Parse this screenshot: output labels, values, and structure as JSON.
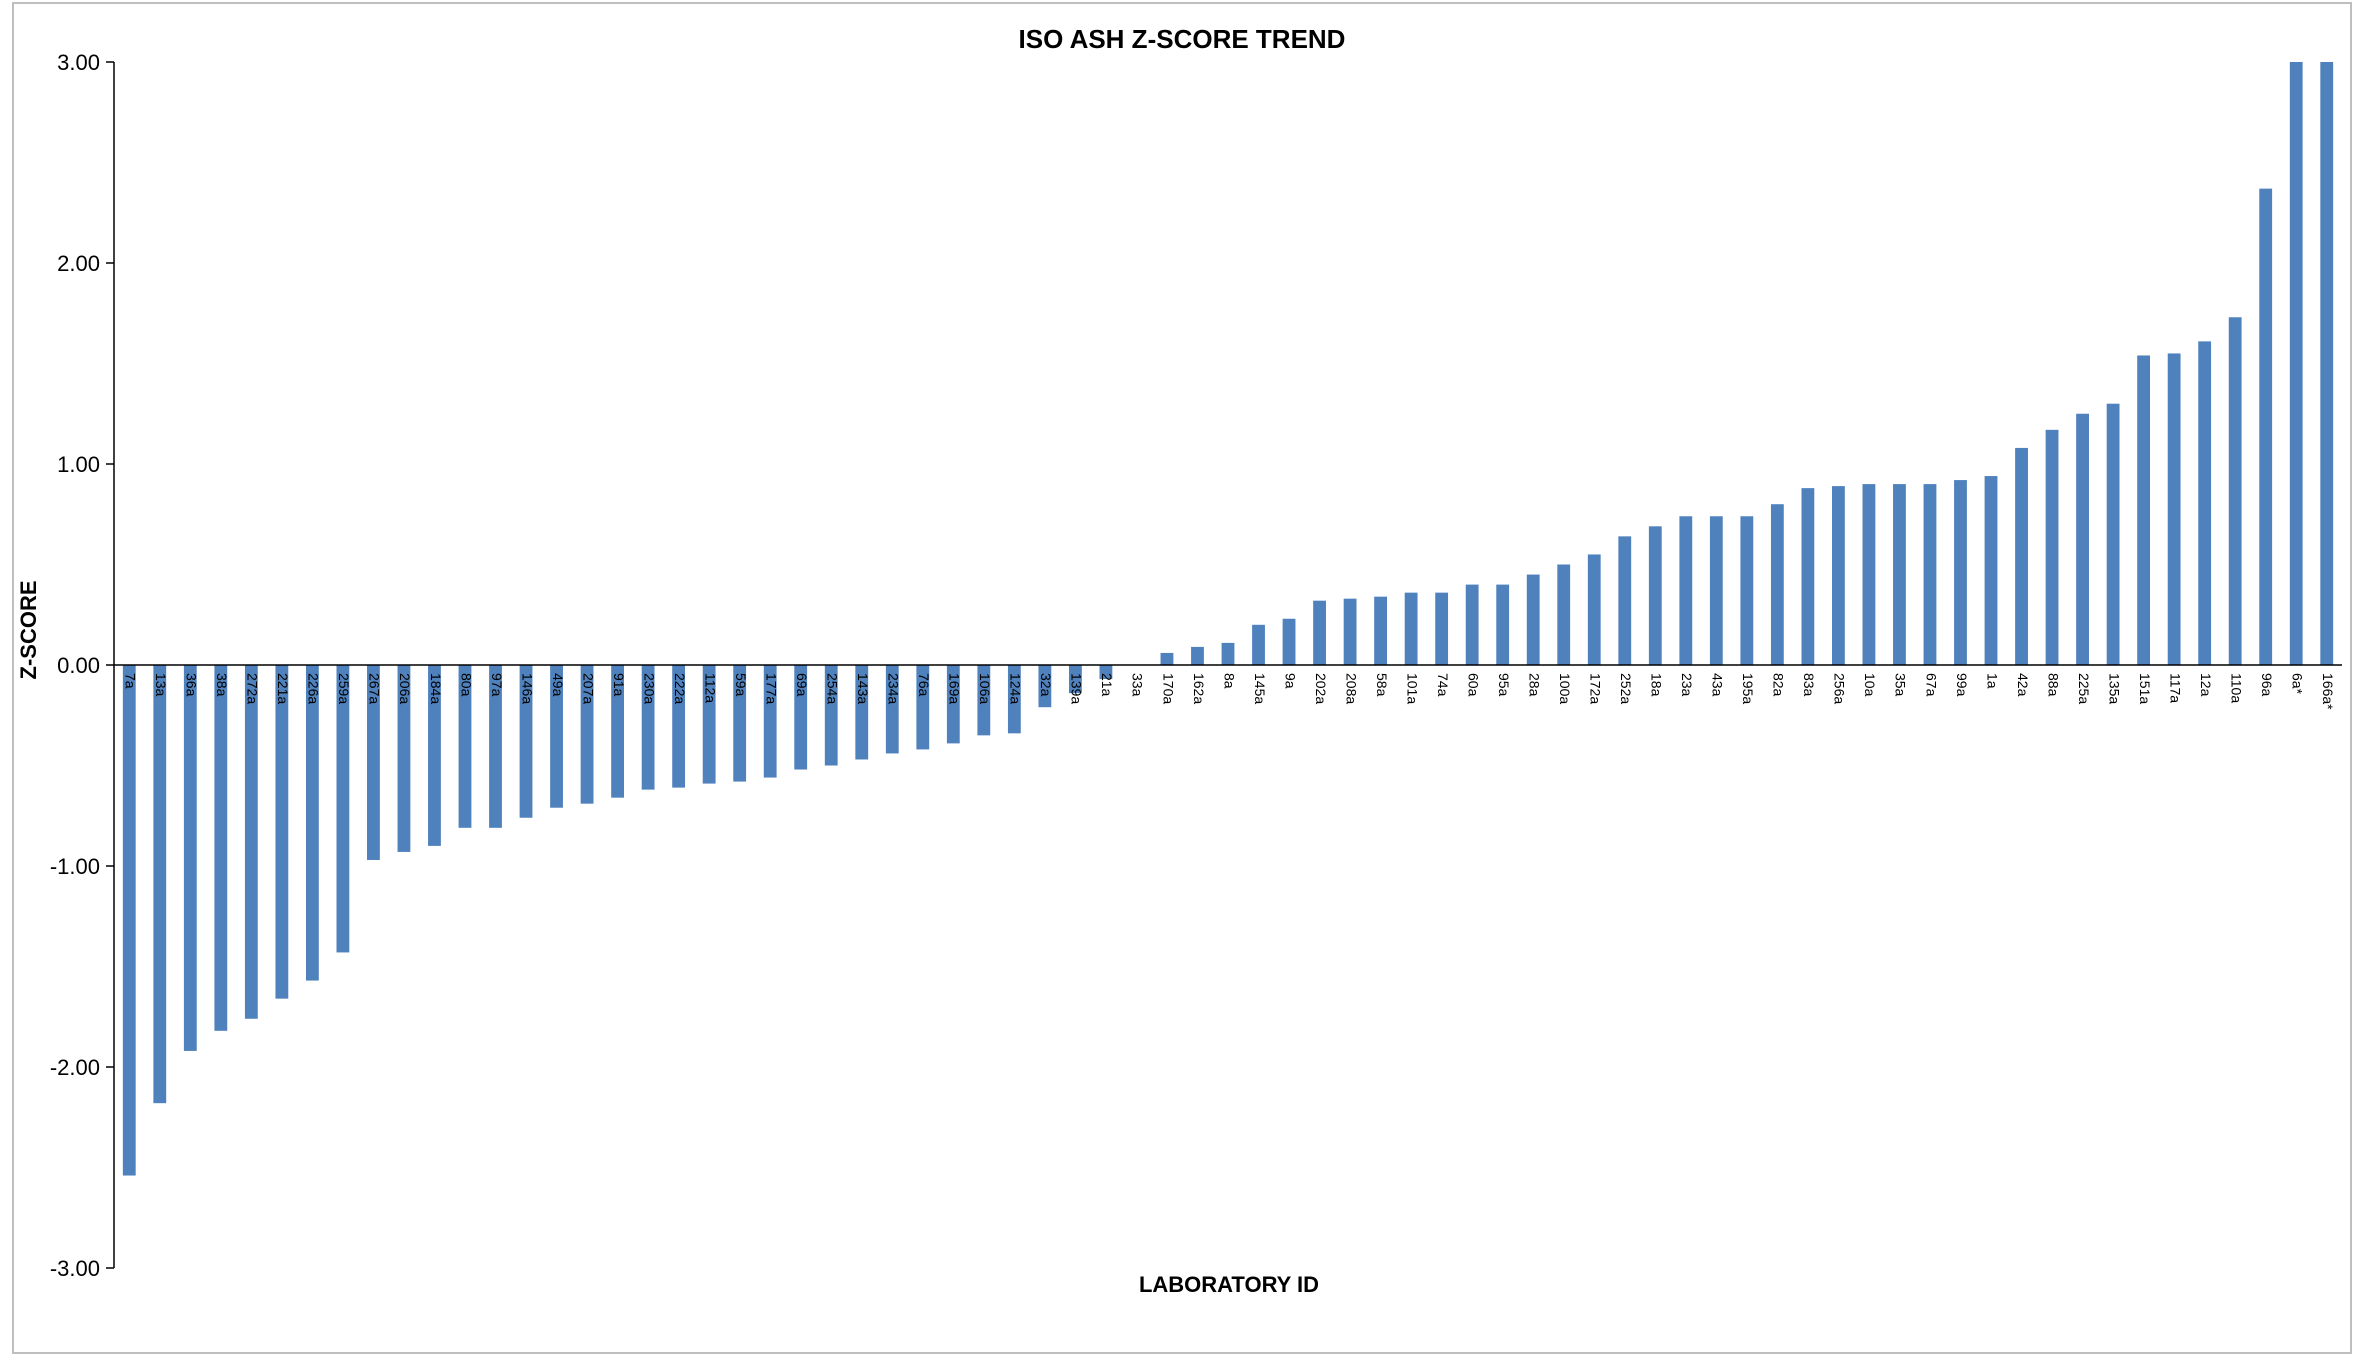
{
  "chart_data": {
    "type": "bar",
    "title": "ISO ASH Z-SCORE TREND",
    "xlabel": "LABORATORY ID",
    "ylabel": "Z-SCORE",
    "ylim": [
      -3,
      3
    ],
    "yticks": [
      "3.00",
      "2.00",
      "1.00",
      "0.00",
      "-1.00",
      "-2.00",
      "-3.00"
    ],
    "grid": false,
    "legend": "none",
    "bar_color": "#4F81BD",
    "categories": [
      "7a",
      "13a",
      "36a",
      "38a",
      "272a",
      "221a",
      "226a",
      "259a",
      "267a",
      "206a",
      "184a",
      "80a",
      "97a",
      "146a",
      "49a",
      "207a",
      "91a",
      "230a",
      "222a",
      "112a",
      "59a",
      "177a",
      "69a",
      "254a",
      "143a",
      "234a",
      "76a",
      "169a",
      "106a",
      "124a",
      "32a",
      "139a",
      "21a",
      "33a",
      "170a",
      "162a",
      "8a",
      "145a",
      "9a",
      "202a",
      "208a",
      "58a",
      "101a",
      "74a",
      "60a",
      "95a",
      "28a",
      "100a",
      "172a",
      "252a",
      "18a",
      "23a",
      "43a",
      "195a",
      "82a",
      "83a",
      "256a",
      "10a",
      "35a",
      "67a",
      "99a",
      "1a",
      "42a",
      "88a",
      "225a",
      "135a",
      "151a",
      "117a",
      "12a",
      "110a",
      "96a",
      "6a*",
      "166a*"
    ],
    "values": [
      -2.54,
      -2.18,
      -1.92,
      -1.82,
      -1.76,
      -1.66,
      -1.57,
      -1.43,
      -0.97,
      -0.93,
      -0.9,
      -0.81,
      -0.81,
      -0.76,
      -0.71,
      -0.69,
      -0.66,
      -0.62,
      -0.61,
      -0.59,
      -0.58,
      -0.56,
      -0.52,
      -0.5,
      -0.47,
      -0.44,
      -0.42,
      -0.39,
      -0.35,
      -0.34,
      -0.21,
      -0.14,
      -0.07,
      0.0,
      0.06,
      0.09,
      0.11,
      0.2,
      0.23,
      0.32,
      0.33,
      0.34,
      0.36,
      0.36,
      0.4,
      0.4,
      0.45,
      0.5,
      0.55,
      0.64,
      0.69,
      0.74,
      0.74,
      0.74,
      0.8,
      0.88,
      0.89,
      0.9,
      0.9,
      0.9,
      0.92,
      0.94,
      1.08,
      1.17,
      1.25,
      1.3,
      1.54,
      1.55,
      1.61,
      1.73,
      2.37,
      3.0,
      3.0
    ]
  }
}
